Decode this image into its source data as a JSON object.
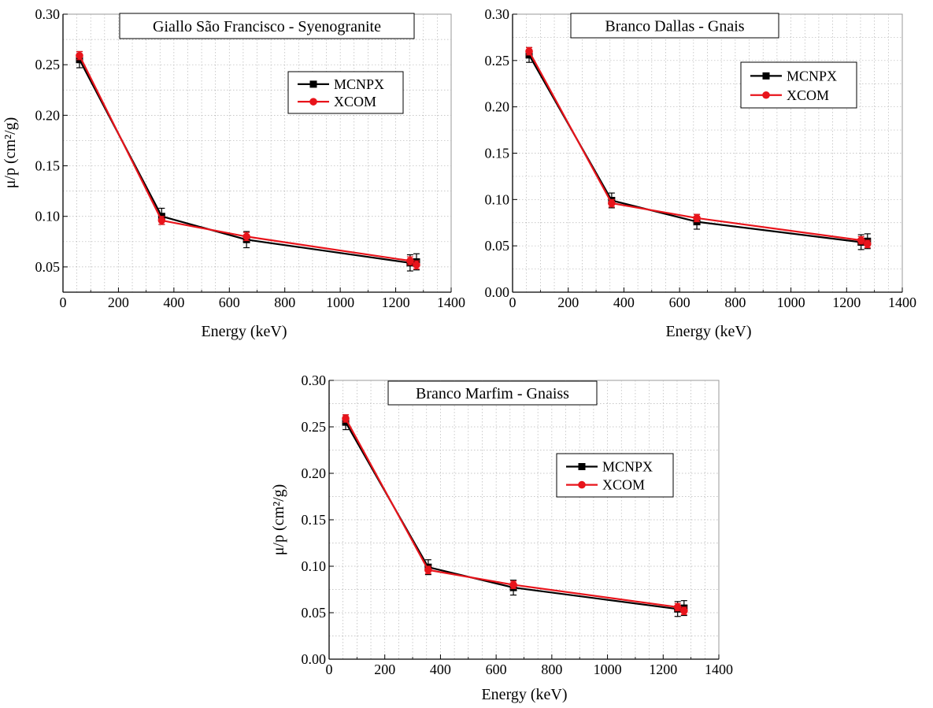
{
  "chart_data": [
    {
      "type": "line",
      "title": "Giallo São Francisco - Syenogranite",
      "xlabel": "Energy (keV)",
      "ylabel": "μ/p (cm²/g)",
      "xlim": [
        0,
        1400
      ],
      "ylim": [
        0.025,
        0.3
      ],
      "xticks": [
        0,
        200,
        400,
        600,
        800,
        1000,
        1200,
        1400
      ],
      "xtick_labels": [
        "0",
        "200",
        "400",
        "600",
        "800",
        "1000",
        "1200",
        "1400"
      ],
      "yticks": [
        0.05,
        0.1,
        0.15,
        0.2,
        0.25,
        0.3
      ],
      "ytick_labels": [
        "0.05",
        "0.10",
        "0.15",
        "0.20",
        "0.25",
        "0.30"
      ],
      "grid": true,
      "legend_position": "upper-right",
      "x": [
        59.5,
        356,
        662,
        1252,
        1275
      ],
      "series": [
        {
          "name": "MCNPX",
          "color": "#000000",
          "marker": "square",
          "values": [
            0.255,
            0.1,
            0.077,
            0.054,
            0.055
          ],
          "errors": [
            0.008,
            0.008,
            0.008,
            0.008,
            0.008
          ]
        },
        {
          "name": "XCOM",
          "color": "#e8141b",
          "marker": "circle",
          "values": [
            0.259,
            0.096,
            0.08,
            0.056,
            0.052
          ],
          "errors": [
            0.004,
            0.004,
            0.004,
            0.004,
            0.004
          ]
        }
      ]
    },
    {
      "type": "line",
      "title": "Branco Dallas - Gnais",
      "xlabel": "Energy (keV)",
      "ylabel": "",
      "xlim": [
        0,
        1400
      ],
      "ylim": [
        0.0,
        0.3
      ],
      "xticks": [
        0,
        200,
        400,
        600,
        800,
        1000,
        1200,
        1400
      ],
      "xtick_labels": [
        "0",
        "200",
        "400",
        "600",
        "800",
        "1000",
        "1200",
        "1400"
      ],
      "yticks": [
        0.0,
        0.05,
        0.1,
        0.15,
        0.2,
        0.25,
        0.3
      ],
      "ytick_labels": [
        "0.00",
        "0.05",
        "0.10",
        "0.15",
        "0.20",
        "0.25",
        "0.30"
      ],
      "grid": true,
      "legend_position": "upper-right",
      "x": [
        59.5,
        356,
        662,
        1252,
        1275
      ],
      "series": [
        {
          "name": "MCNPX",
          "color": "#000000",
          "marker": "square",
          "values": [
            0.256,
            0.099,
            0.076,
            0.054,
            0.055
          ],
          "errors": [
            0.008,
            0.008,
            0.008,
            0.008,
            0.008
          ]
        },
        {
          "name": "XCOM",
          "color": "#e8141b",
          "marker": "circle",
          "values": [
            0.26,
            0.096,
            0.08,
            0.056,
            0.052
          ],
          "errors": [
            0.004,
            0.004,
            0.004,
            0.004,
            0.004
          ]
        }
      ]
    },
    {
      "type": "line",
      "title": "Branco Marfim - Gnaiss",
      "xlabel": "Energy (keV)",
      "ylabel": "μ/p (cm²/g)",
      "xlim": [
        0,
        1400
      ],
      "ylim": [
        0.0,
        0.3
      ],
      "xticks": [
        0,
        200,
        400,
        600,
        800,
        1000,
        1200,
        1400
      ],
      "xtick_labels": [
        "0",
        "200",
        "400",
        "600",
        "800",
        "1000",
        "1200",
        "1400"
      ],
      "yticks": [
        0.0,
        0.05,
        0.1,
        0.15,
        0.2,
        0.25,
        0.3
      ],
      "ytick_labels": [
        "0.00",
        "0.05",
        "0.10",
        "0.15",
        "0.20",
        "0.25",
        "0.30"
      ],
      "grid": true,
      "legend_position": "right",
      "x": [
        59.5,
        356,
        662,
        1252,
        1275
      ],
      "series": [
        {
          "name": "MCNPX",
          "color": "#000000",
          "marker": "square",
          "values": [
            0.255,
            0.099,
            0.077,
            0.054,
            0.055
          ],
          "errors": [
            0.008,
            0.008,
            0.008,
            0.008,
            0.008
          ]
        },
        {
          "name": "XCOM",
          "color": "#e8141b",
          "marker": "circle",
          "values": [
            0.259,
            0.096,
            0.08,
            0.056,
            0.052
          ],
          "errors": [
            0.004,
            0.004,
            0.004,
            0.004,
            0.004
          ]
        }
      ]
    }
  ]
}
